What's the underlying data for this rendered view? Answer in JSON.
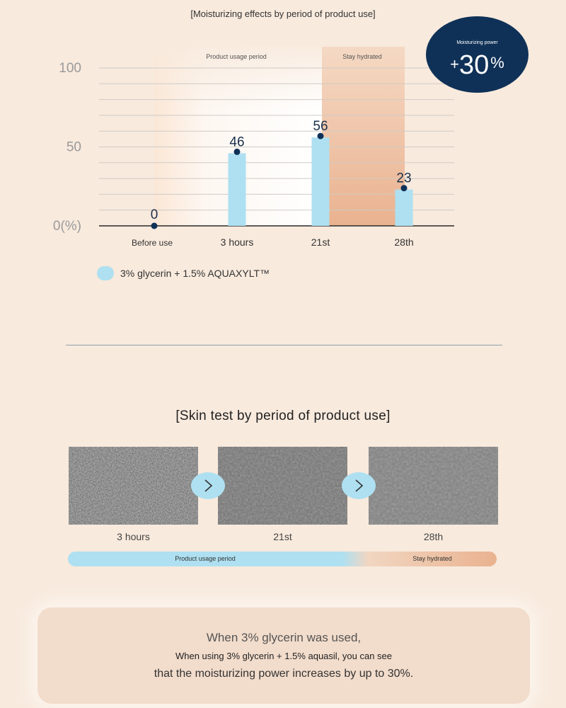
{
  "chart_data": {
    "type": "bar",
    "title": "[Moisturizing effects by period of product use]",
    "categories": [
      "Before use",
      "3 hours",
      "21st",
      "28th"
    ],
    "series": [
      {
        "name": "3% glycerin + 1.5% AQUAXYLT™",
        "values": [
          0,
          46,
          56,
          23
        ],
        "color": "#aee0f1"
      }
    ],
    "y_ticks": [
      "100",
      "50",
      "0(%)"
    ],
    "ylim": [
      0,
      100
    ],
    "grid": true,
    "point_color": "#0f3157",
    "bands": [
      {
        "label": "Product usage period",
        "from": "Before use",
        "to": "21st"
      },
      {
        "label": "Stay hydrated",
        "from": "21st",
        "to": "28th"
      }
    ],
    "legend_position": "bottom-left"
  },
  "badge": {
    "label": "Moisturizing power",
    "plus": "+",
    "value": "30",
    "unit": "%"
  },
  "skin_test": {
    "title": "[Skin test by period of product use]",
    "items": [
      {
        "label": "3 hours"
      },
      {
        "label": "21st"
      },
      {
        "label": "28th"
      }
    ],
    "arrow_glyph": "›",
    "period_bar": {
      "usage_label": "Product usage period",
      "hydrated_label": "Stay hydrated",
      "usage_fraction": 0.64
    }
  },
  "summary": {
    "line1": "When 3% glycerin was used,",
    "line2": "When using 3% glycerin + 1.5% aquasil, you can see",
    "line3": "that the moisturizing power increases by up to 30%."
  },
  "colors": {
    "background": "#f8eadd",
    "accent_navy": "#0f3157",
    "bar_blue": "#aee0f1",
    "peach": "#eab28f"
  }
}
